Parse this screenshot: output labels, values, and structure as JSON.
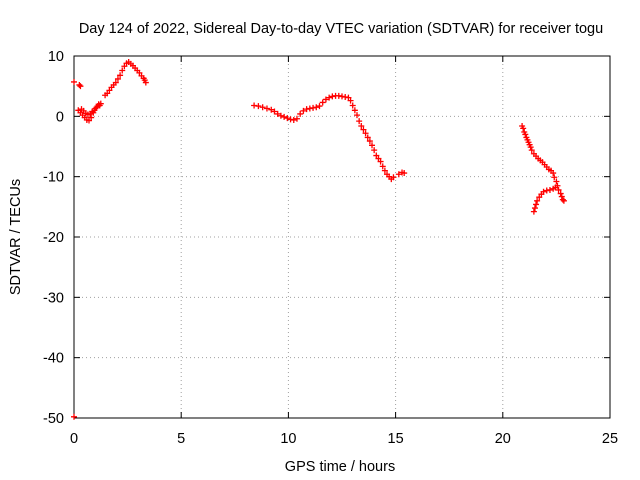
{
  "chart_data": {
    "type": "scatter",
    "title": "Day 124 of 2022, Sidereal Day-to-day VTEC variation (SDTVAR) for receiver togu",
    "xlabel": "GPS time / hours",
    "ylabel": "SDTVAR / TECUs",
    "xlim": [
      0,
      25
    ],
    "ylim": [
      -50,
      10
    ],
    "xticks": [
      0,
      5,
      10,
      15,
      20,
      25
    ],
    "yticks": [
      10,
      0,
      -10,
      -20,
      -30,
      -40,
      -50
    ],
    "grid": true,
    "marker": "+",
    "series": [
      {
        "name": "SDTVAR",
        "color": "#ff0000",
        "points": [
          [
            0.0,
            5.7
          ],
          [
            0.0,
            -49.8
          ],
          [
            0.25,
            5.2
          ],
          [
            0.3,
            5.0
          ],
          [
            0.2,
            1.0
          ],
          [
            0.3,
            0.6
          ],
          [
            0.35,
            1.2
          ],
          [
            0.4,
            0.2
          ],
          [
            0.45,
            0.9
          ],
          [
            0.5,
            -0.2
          ],
          [
            0.55,
            0.5
          ],
          [
            0.6,
            -0.6
          ],
          [
            0.65,
            0.3
          ],
          [
            0.7,
            -0.7
          ],
          [
            0.75,
            0.4
          ],
          [
            0.8,
            -0.2
          ],
          [
            0.85,
            0.8
          ],
          [
            0.9,
            0.6
          ],
          [
            0.95,
            1.0
          ],
          [
            1.0,
            1.3
          ],
          [
            1.05,
            1.5
          ],
          [
            1.1,
            1.7
          ],
          [
            1.15,
            2.0
          ],
          [
            1.2,
            1.8
          ],
          [
            1.25,
            2.1
          ],
          [
            1.45,
            3.5
          ],
          [
            1.55,
            3.8
          ],
          [
            1.65,
            4.3
          ],
          [
            1.75,
            4.8
          ],
          [
            1.85,
            5.2
          ],
          [
            1.95,
            5.6
          ],
          [
            2.05,
            6.2
          ],
          [
            2.15,
            6.8
          ],
          [
            2.25,
            7.6
          ],
          [
            2.35,
            8.3
          ],
          [
            2.45,
            8.8
          ],
          [
            2.55,
            9.0
          ],
          [
            2.65,
            8.7
          ],
          [
            2.75,
            8.4
          ],
          [
            2.85,
            8.0
          ],
          [
            2.95,
            7.6
          ],
          [
            3.05,
            7.2
          ],
          [
            3.15,
            6.7
          ],
          [
            3.25,
            6.3
          ],
          [
            3.3,
            6.0
          ],
          [
            3.35,
            5.6
          ],
          [
            8.4,
            1.8
          ],
          [
            8.6,
            1.7
          ],
          [
            8.8,
            1.5
          ],
          [
            9.0,
            1.3
          ],
          [
            9.2,
            1.1
          ],
          [
            9.35,
            0.8
          ],
          [
            9.5,
            0.4
          ],
          [
            9.65,
            0.1
          ],
          [
            9.8,
            -0.1
          ],
          [
            9.95,
            -0.3
          ],
          [
            10.1,
            -0.5
          ],
          [
            10.25,
            -0.6
          ],
          [
            10.4,
            -0.4
          ],
          [
            10.55,
            0.4
          ],
          [
            10.7,
            0.9
          ],
          [
            10.85,
            1.2
          ],
          [
            11.0,
            1.3
          ],
          [
            11.15,
            1.4
          ],
          [
            11.3,
            1.5
          ],
          [
            11.45,
            1.7
          ],
          [
            11.6,
            2.3
          ],
          [
            11.75,
            2.8
          ],
          [
            11.9,
            3.1
          ],
          [
            12.05,
            3.3
          ],
          [
            12.2,
            3.4
          ],
          [
            12.35,
            3.4
          ],
          [
            12.5,
            3.3
          ],
          [
            12.65,
            3.2
          ],
          [
            12.8,
            3.1
          ],
          [
            12.9,
            2.6
          ],
          [
            13.0,
            1.8
          ],
          [
            13.1,
            1.0
          ],
          [
            13.2,
            0.2
          ],
          [
            13.3,
            -0.8
          ],
          [
            13.4,
            -1.6
          ],
          [
            13.5,
            -2.2
          ],
          [
            13.6,
            -2.8
          ],
          [
            13.7,
            -3.5
          ],
          [
            13.8,
            -4.1
          ],
          [
            13.9,
            -4.8
          ],
          [
            14.0,
            -5.6
          ],
          [
            14.1,
            -6.5
          ],
          [
            14.2,
            -7.0
          ],
          [
            14.3,
            -7.5
          ],
          [
            14.4,
            -8.3
          ],
          [
            14.5,
            -9.0
          ],
          [
            14.6,
            -9.6
          ],
          [
            14.7,
            -10.0
          ],
          [
            14.8,
            -10.4
          ],
          [
            14.9,
            -10.1
          ],
          [
            15.15,
            -9.6
          ],
          [
            15.3,
            -9.3
          ],
          [
            15.4,
            -9.4
          ],
          [
            20.9,
            -1.6
          ],
          [
            20.95,
            -2.0
          ],
          [
            21.0,
            -2.6
          ],
          [
            21.05,
            -3.0
          ],
          [
            21.1,
            -3.5
          ],
          [
            21.15,
            -3.9
          ],
          [
            21.2,
            -4.3
          ],
          [
            21.25,
            -4.7
          ],
          [
            21.3,
            -5.1
          ],
          [
            21.35,
            -5.6
          ],
          [
            21.45,
            -6.2
          ],
          [
            21.55,
            -6.6
          ],
          [
            21.65,
            -7.0
          ],
          [
            21.75,
            -7.3
          ],
          [
            21.85,
            -7.6
          ],
          [
            21.95,
            -8.0
          ],
          [
            22.05,
            -8.4
          ],
          [
            22.15,
            -8.8
          ],
          [
            22.25,
            -9.0
          ],
          [
            22.35,
            -9.4
          ],
          [
            22.4,
            -10.1
          ],
          [
            22.5,
            -10.8
          ],
          [
            22.55,
            -11.5
          ],
          [
            22.6,
            -12.2
          ],
          [
            22.7,
            -12.8
          ],
          [
            22.75,
            -13.3
          ],
          [
            22.8,
            -13.8
          ],
          [
            22.85,
            -14.0
          ],
          [
            22.45,
            -11.8
          ],
          [
            22.35,
            -12.0
          ],
          [
            22.2,
            -12.2
          ],
          [
            22.05,
            -12.3
          ],
          [
            21.9,
            -12.5
          ],
          [
            21.8,
            -12.9
          ],
          [
            21.7,
            -13.4
          ],
          [
            21.6,
            -14.0
          ],
          [
            21.55,
            -14.6
          ],
          [
            21.5,
            -15.2
          ],
          [
            21.45,
            -15.8
          ]
        ]
      }
    ]
  }
}
